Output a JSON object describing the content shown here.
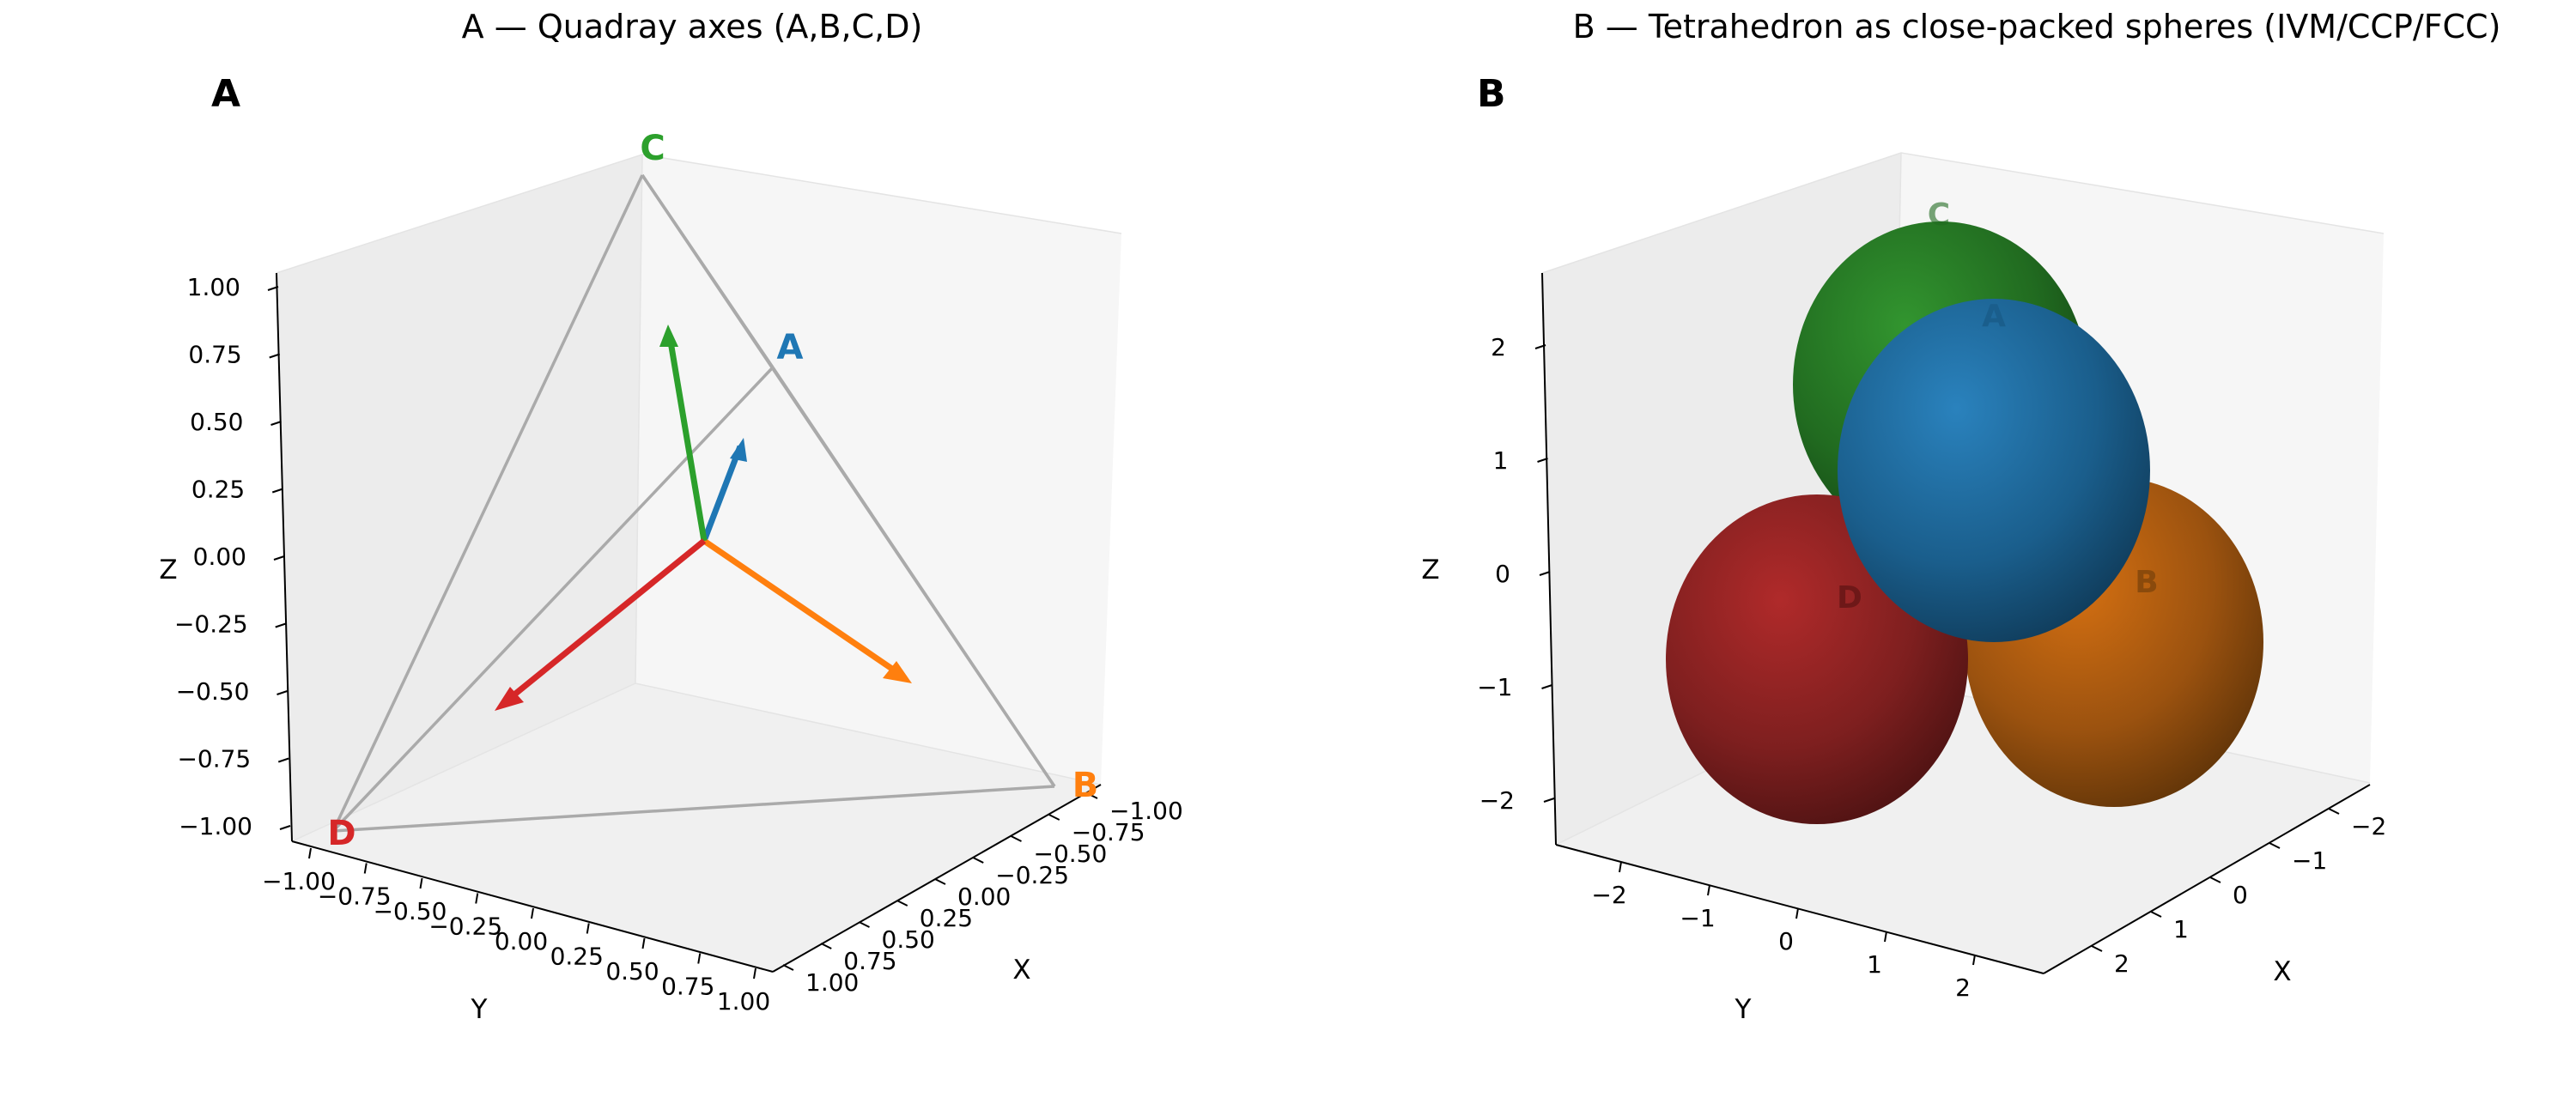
{
  "figure": {
    "panels": [
      {
        "letter": "A",
        "title": "A — Quadray axes (A,B,C,D)"
      },
      {
        "letter": "B",
        "title": "B — Tetrahedron as close-packed spheres (IVM/CCP/FCC)"
      }
    ]
  },
  "chart_data": [
    {
      "type": "line",
      "subtype": "3d-vector",
      "title": "A — Quadray axes (A,B,C,D)",
      "panel_label": "A",
      "xlabel": "X",
      "ylabel": "Y",
      "zlabel": "Z",
      "xlim": [
        -1,
        1
      ],
      "ylim": [
        -1,
        1
      ],
      "zlim": [
        -1,
        1
      ],
      "x_ticks": [
        "−1.00",
        "−0.75",
        "−0.50",
        "−0.25",
        "0.00",
        "0.25",
        "0.50",
        "0.75",
        "1.00"
      ],
      "y_ticks": [
        "−1.00",
        "−0.75",
        "−0.50",
        "−0.25",
        "0.00",
        "0.25",
        "0.50",
        "0.75",
        "1.00"
      ],
      "z_ticks": [
        "−1.00",
        "−0.75",
        "−0.50",
        "−0.25",
        "0.00",
        "0.25",
        "0.50",
        "0.75",
        "1.00"
      ],
      "grid": false,
      "series": [
        {
          "name": "A",
          "color": "#1f77b4",
          "vertex": [
            1,
            1,
            1
          ],
          "arrow_tip": [
            0.58,
            0.58,
            0.58
          ]
        },
        {
          "name": "B",
          "color": "#ff7f0e",
          "vertex": [
            1,
            -1,
            -1
          ],
          "arrow_tip": [
            0.58,
            -0.58,
            -0.58
          ]
        },
        {
          "name": "C",
          "color": "#2ca02c",
          "vertex": [
            -1,
            1,
            -1
          ],
          "arrow_tip": [
            -0.58,
            0.58,
            -0.58
          ]
        },
        {
          "name": "D",
          "color": "#d62728",
          "vertex": [
            -1,
            -1,
            1
          ],
          "arrow_tip": [
            -0.58,
            -0.58,
            0.58
          ]
        }
      ],
      "edge_color": "#aaaaaa"
    },
    {
      "type": "scatter",
      "subtype": "3d-spheres",
      "title": "B — Tetrahedron as close-packed spheres (IVM/CCP/FCC)",
      "panel_label": "B",
      "xlabel": "X",
      "ylabel": "Y",
      "zlabel": "Z",
      "xlim": [
        -2.5,
        2.5
      ],
      "ylim": [
        -2.5,
        2.5
      ],
      "zlim": [
        -2.5,
        2.5
      ],
      "x_ticks": [
        "−2",
        "−1",
        "0",
        "1",
        "2"
      ],
      "y_ticks": [
        "−2",
        "−1",
        "0",
        "1",
        "2"
      ],
      "z_ticks": [
        "−2",
        "−1",
        "0",
        "1",
        "2"
      ],
      "grid": false,
      "series": [
        {
          "name": "A",
          "color": "#1f77b4",
          "center": [
            1,
            1,
            1
          ],
          "radius": 1.414
        },
        {
          "name": "B",
          "color": "#ff7f0e",
          "center": [
            1,
            -1,
            -1
          ],
          "radius": 1.414
        },
        {
          "name": "C",
          "color": "#2ca02c",
          "center": [
            -1,
            1,
            -1
          ],
          "radius": 1.414
        },
        {
          "name": "D",
          "color": "#d62728",
          "center": [
            -1,
            -1,
            1
          ],
          "radius": 1.414
        }
      ]
    }
  ]
}
